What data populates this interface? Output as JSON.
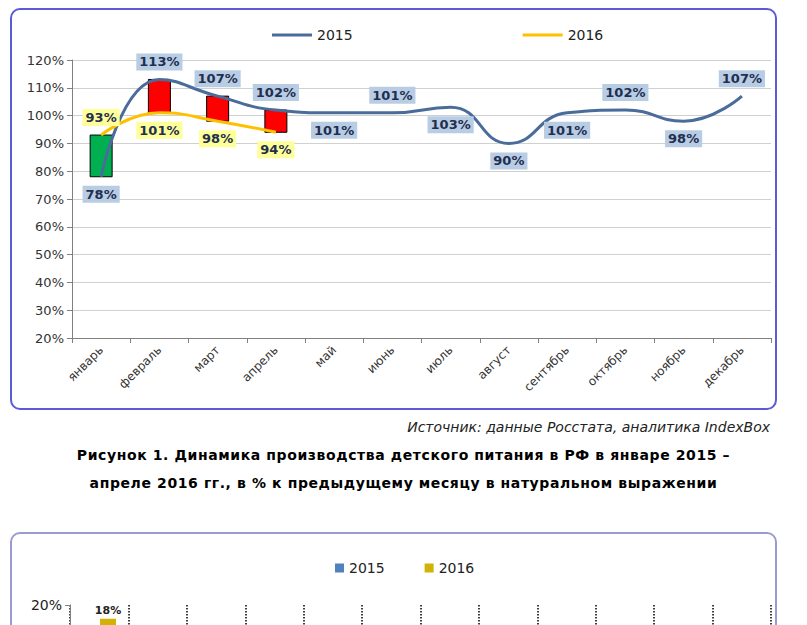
{
  "chart_data": [
    {
      "type": "line",
      "title": "Рисунок 1. Динамика производства детского питания в РФ в январе 2015 –\nапреле 2016 гг., в % к предыдущему месяцу в натуральном выражении",
      "source": "Источник: данные Росстата, аналитика IndexBox",
      "categories": [
        "январь",
        "февраль",
        "март",
        "апрель",
        "май",
        "июнь",
        "июль",
        "август",
        "сентябрь",
        "октябрь",
        "ноябрь",
        "декабрь"
      ],
      "series": [
        {
          "name": "2015",
          "color": "#4a6c9b",
          "values": [
            78,
            113,
            107,
            102,
            101,
            101,
            103,
            90,
            101,
            102,
            98,
            107
          ],
          "value_labels": [
            "78%",
            "113%",
            "107%",
            "102%",
            "101%",
            "101%",
            "103%",
            "90%",
            "101%",
            "102%",
            "98%",
            "107%"
          ]
        },
        {
          "name": "2016",
          "color": "#ffc000",
          "values": [
            93,
            101,
            98,
            94,
            null,
            null,
            null,
            null,
            null,
            null,
            null,
            null
          ],
          "value_labels": [
            "93%",
            "101%",
            "98%",
            "94%",
            null,
            null,
            null,
            null,
            null,
            null,
            null,
            null
          ]
        }
      ],
      "ylim": [
        20,
        120
      ],
      "yticks": [
        {
          "value": 20,
          "label": "20%"
        },
        {
          "value": 30,
          "label": "30%"
        },
        {
          "value": 40,
          "label": "40%"
        },
        {
          "value": 50,
          "label": "50%"
        },
        {
          "value": 60,
          "label": "60%"
        },
        {
          "value": 70,
          "label": "70%"
        },
        {
          "value": 80,
          "label": "80%"
        },
        {
          "value": 90,
          "label": "90%"
        },
        {
          "value": 100,
          "label": "100%"
        },
        {
          "value": 110,
          "label": "110%"
        },
        {
          "value": 120,
          "label": "120%"
        }
      ],
      "grid": true,
      "legend": "top",
      "data_labels": true
    },
    {
      "type": "bar",
      "categories": [
        null,
        null,
        null,
        null,
        null,
        null,
        null,
        null,
        null,
        null,
        null,
        null
      ],
      "series": [
        {
          "name": "2015",
          "color": "#4f81bd",
          "values": [
            null,
            null,
            null,
            null,
            null,
            null,
            null,
            null,
            null,
            null,
            null,
            null
          ],
          "value_labels": [
            null,
            null,
            null,
            null,
            null,
            null,
            null,
            null,
            null,
            null,
            null,
            null
          ]
        },
        {
          "name": "2016",
          "color": "#d4b106",
          "values": [
            18,
            null,
            null,
            null,
            null,
            null,
            null,
            null,
            null,
            null,
            null,
            null
          ],
          "value_labels": [
            "18%",
            null,
            null,
            null,
            null,
            null,
            null,
            null,
            null,
            null,
            null,
            null
          ]
        }
      ],
      "ylim": [
        0,
        20
      ],
      "yticks": [
        {
          "value": 20,
          "label": "20%"
        }
      ],
      "grid": false,
      "legend": "top",
      "data_labels": true,
      "tick_labels": "y"
    }
  ]
}
